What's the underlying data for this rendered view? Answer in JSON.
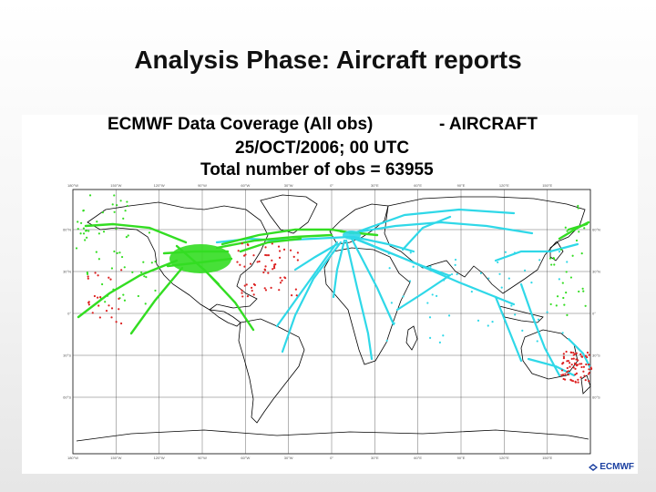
{
  "slide": {
    "title": "Analysis Phase: Aircraft reports"
  },
  "map": {
    "title_line1": "ECMWF Data Coverage (All obs)",
    "title_suffix": "- AIRCRAFT",
    "title_line2": "25/OCT/2006; 00 UTC",
    "title_line3": "Total number of obs = 63955",
    "lon_ticks": [
      "180°W",
      "150°W",
      "120°W",
      "90°W",
      "60°W",
      "30°W",
      "0°",
      "30°E",
      "60°E",
      "90°E",
      "120°E",
      "150°E"
    ],
    "lat_ticks": [
      "60°N",
      "30°N",
      "0°",
      "30°S",
      "60°S"
    ],
    "lat_ticks_right": [
      "60°N",
      "30°N",
      "0°",
      "30°S",
      "60°S"
    ],
    "logo_text": "ECMWF",
    "colors": {
      "coastline": "#000000",
      "grid": "#444444",
      "track_cyan": "#2fd8e8",
      "track_green": "#33dd22",
      "obs_red": "#dd2222"
    }
  }
}
